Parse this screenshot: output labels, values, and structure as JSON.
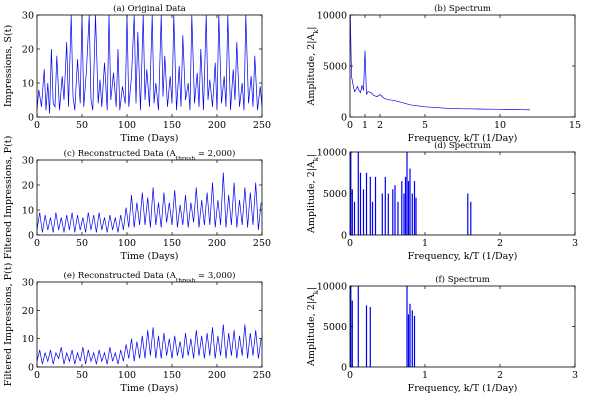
{
  "figure": {
    "line_color": "#0000ee",
    "background": "#ffffff",
    "layout": "3x2"
  },
  "chart_data": [
    {
      "id": "panel-a",
      "type": "line",
      "title": "(a) Original Data",
      "xlabel": "Time (Days)",
      "ylabel": "Impressions, S(t)",
      "xlim": [
        0,
        250
      ],
      "ylim": [
        0,
        30
      ],
      "xticks": [
        "0",
        "50",
        "100",
        "150",
        "200",
        "250"
      ],
      "yticks": [
        "0",
        "10",
        "20",
        "30"
      ],
      "grid": false,
      "series": [
        {
          "x": [
            0,
            2,
            5,
            8,
            10,
            12,
            14,
            16,
            18,
            20,
            22,
            25,
            28,
            30,
            33,
            35,
            38,
            40,
            42,
            45,
            48,
            50,
            52,
            55,
            58,
            60,
            62,
            65,
            68,
            70,
            72,
            75,
            78,
            80,
            82,
            85,
            88,
            90,
            92,
            95,
            98,
            100,
            102,
            105,
            108,
            110,
            112,
            115,
            118,
            120,
            122,
            125,
            128,
            130,
            132,
            135,
            138,
            140,
            142,
            145,
            148,
            150,
            152,
            155,
            158,
            160,
            162,
            165,
            168,
            170,
            172,
            175,
            178,
            180,
            182,
            185,
            188,
            190,
            192,
            195,
            198,
            200,
            202,
            205,
            208,
            210,
            212,
            215,
            218,
            220,
            222,
            225,
            228,
            230,
            232,
            235,
            238,
            240,
            242,
            245,
            248,
            250
          ],
          "y": [
            2,
            8,
            3,
            14,
            2,
            10,
            1,
            20,
            4,
            3,
            18,
            2,
            12,
            5,
            22,
            3,
            30,
            6,
            2,
            17,
            4,
            30,
            3,
            14,
            30,
            5,
            2,
            30,
            4,
            11,
            3,
            16,
            2,
            30,
            5,
            13,
            3,
            20,
            2,
            9,
            4,
            30,
            3,
            12,
            30,
            4,
            25,
            2,
            30,
            5,
            14,
            3,
            30,
            4,
            10,
            2,
            30,
            6,
            18,
            3,
            12,
            4,
            30,
            2,
            15,
            3,
            24,
            5,
            10,
            2,
            30,
            4,
            13,
            3,
            20,
            2,
            30,
            5,
            11,
            3,
            16,
            2,
            30,
            4,
            12,
            3,
            30,
            2,
            14,
            5,
            22,
            3,
            10,
            2,
            30,
            4,
            12,
            3,
            18,
            2,
            9,
            3
          ]
        }
      ]
    },
    {
      "id": "panel-b",
      "type": "line",
      "title": "(b) Spectrum",
      "xlabel": "Frequency, k/T (1/Day)",
      "ylabel": "Amplitude, 2|A_k|",
      "xlim": [
        0,
        15
      ],
      "ylim": [
        0,
        10000
      ],
      "xticks": [
        "0",
        "1",
        "2",
        "5",
        "10",
        "15"
      ],
      "yticks": [
        "0",
        "5000",
        "10000"
      ],
      "grid": false,
      "series": [
        {
          "x": [
            0.02,
            0.1,
            0.2,
            0.3,
            0.4,
            0.5,
            0.6,
            0.7,
            0.8,
            0.9,
            1.0,
            1.1,
            1.2,
            1.4,
            1.6,
            1.8,
            2.0,
            2.3,
            2.6,
            3.0,
            3.5,
            4.0,
            4.5,
            5.0,
            5.5,
            6.0,
            6.5,
            7.0,
            7.5,
            8.0,
            8.5,
            9.0,
            9.5,
            10.0,
            10.5,
            11.0,
            11.5,
            12.0
          ],
          "y": [
            10000,
            4000,
            3200,
            2500,
            2700,
            3000,
            2600,
            2400,
            3100,
            2600,
            6500,
            2200,
            2500,
            2400,
            2100,
            2000,
            2200,
            1800,
            1700,
            1600,
            1400,
            1200,
            1100,
            1000,
            950,
            900,
            850,
            850,
            800,
            800,
            780,
            770,
            760,
            750,
            740,
            730,
            720,
            700
          ]
        }
      ]
    },
    {
      "id": "panel-c",
      "type": "line",
      "title": "(c) Reconstructed Data (A_thresh = 2,000)",
      "xlabel": "Time (Days)",
      "ylabel": "Filtered Impressions, P(t)",
      "xlim": [
        0,
        250
      ],
      "ylim": [
        0,
        30
      ],
      "xticks": [
        "0",
        "50",
        "100",
        "150",
        "200",
        "250"
      ],
      "yticks": [
        "0",
        "10",
        "20",
        "30"
      ],
      "grid": false,
      "series": [
        {
          "x": [
            0,
            3,
            6,
            9,
            12,
            15,
            18,
            21,
            24,
            27,
            30,
            33,
            36,
            39,
            42,
            45,
            48,
            51,
            54,
            57,
            60,
            63,
            66,
            69,
            72,
            75,
            78,
            81,
            84,
            87,
            90,
            93,
            96,
            99,
            102,
            105,
            108,
            111,
            114,
            117,
            120,
            123,
            126,
            129,
            132,
            135,
            138,
            141,
            144,
            147,
            150,
            153,
            156,
            159,
            162,
            165,
            168,
            171,
            174,
            177,
            180,
            183,
            186,
            189,
            192,
            195,
            198,
            201,
            204,
            207,
            210,
            213,
            216,
            219,
            222,
            225,
            228,
            231,
            234,
            237,
            240,
            243,
            246,
            249
          ],
          "y": [
            2,
            9,
            1,
            8,
            2,
            7,
            1,
            9,
            2,
            7,
            1,
            8,
            2,
            9,
            1,
            8,
            2,
            7,
            1,
            9,
            2,
            8,
            1,
            9,
            2,
            7,
            1,
            8,
            2,
            7,
            1,
            8,
            2,
            11,
            3,
            16,
            3,
            13,
            4,
            17,
            4,
            15,
            3,
            19,
            4,
            13,
            3,
            17,
            5,
            13,
            4,
            18,
            3,
            12,
            4,
            16,
            3,
            13,
            5,
            19,
            3,
            14,
            4,
            17,
            4,
            21,
            3,
            14,
            4,
            25,
            3,
            16,
            4,
            21,
            3,
            14,
            4,
            19,
            3,
            17,
            4,
            21,
            2,
            13
          ]
        }
      ]
    },
    {
      "id": "panel-d",
      "type": "bar",
      "title": "(d) Spectrum",
      "xlabel": "Frequency, k/T (1/Day)",
      "ylabel": "Amplitude, 2|A_k|",
      "xlim": [
        0,
        3
      ],
      "ylim": [
        0,
        10000
      ],
      "xticks": [
        "0",
        "1",
        "2",
        "3"
      ],
      "yticks": [
        "0",
        "5000",
        "10000"
      ],
      "grid": false,
      "series": [
        {
          "x": [
            0.01,
            0.03,
            0.06,
            0.11,
            0.14,
            0.18,
            0.22,
            0.27,
            0.3,
            0.34,
            0.43,
            0.47,
            0.51,
            0.57,
            0.6,
            0.64,
            0.69,
            0.72,
            0.74,
            0.76,
            0.78,
            0.8,
            0.83,
            0.86,
            0.88,
            1.57,
            1.61
          ],
          "y": [
            10000,
            5500,
            4000,
            10000,
            7500,
            5500,
            7500,
            7000,
            4000,
            7000,
            5000,
            7000,
            5000,
            5500,
            6000,
            4000,
            6500,
            5000,
            7000,
            10000,
            6500,
            8000,
            5000,
            6500,
            4500,
            5000,
            4000
          ]
        }
      ]
    },
    {
      "id": "panel-e",
      "type": "line",
      "title": "(e) Reconstructed Data (A_thresh = 3,000)",
      "xlabel": "Time (Days)",
      "ylabel": "Filtered Impressions, P(t)",
      "xlim": [
        0,
        250
      ],
      "ylim": [
        0,
        30
      ],
      "xticks": [
        "0",
        "50",
        "100",
        "150",
        "200",
        "250"
      ],
      "yticks": [
        "0",
        "10",
        "20",
        "30"
      ],
      "grid": false,
      "series": [
        {
          "x": [
            0,
            3,
            6,
            9,
            12,
            15,
            18,
            21,
            24,
            27,
            30,
            33,
            36,
            39,
            42,
            45,
            48,
            51,
            54,
            57,
            60,
            63,
            66,
            69,
            72,
            75,
            78,
            81,
            84,
            87,
            90,
            93,
            96,
            99,
            102,
            105,
            108,
            111,
            114,
            117,
            120,
            123,
            126,
            129,
            132,
            135,
            138,
            141,
            144,
            147,
            150,
            153,
            156,
            159,
            162,
            165,
            168,
            171,
            174,
            177,
            180,
            183,
            186,
            189,
            192,
            195,
            198,
            201,
            204,
            207,
            210,
            213,
            216,
            219,
            222,
            225,
            228,
            231,
            234,
            237,
            240,
            243,
            246,
            249
          ],
          "y": [
            2,
            6,
            1,
            5,
            2,
            6,
            1,
            5,
            3,
            7,
            1,
            5,
            2,
            6,
            1,
            5,
            2,
            7,
            1,
            6,
            2,
            5,
            1,
            6,
            2,
            5,
            1,
            7,
            2,
            5,
            1,
            6,
            2,
            8,
            3,
            10,
            2,
            9,
            3,
            11,
            3,
            13,
            4,
            14,
            3,
            11,
            3,
            12,
            4,
            10,
            3,
            11,
            4,
            9,
            3,
            12,
            4,
            10,
            3,
            13,
            4,
            11,
            3,
            12,
            4,
            14,
            3,
            11,
            4,
            15,
            3,
            12,
            4,
            13,
            3,
            11,
            4,
            15,
            3,
            12,
            4,
            13,
            3,
            10
          ]
        }
      ]
    },
    {
      "id": "panel-f",
      "type": "bar",
      "title": "(f) Spectrum",
      "xlabel": "Frequency, k/T (1/Day)",
      "ylabel": "Amplitude, 2|A_k|",
      "xlim": [
        0,
        3
      ],
      "ylim": [
        0,
        10000
      ],
      "xticks": [
        "0",
        "1",
        "2",
        "3"
      ],
      "yticks": [
        "0",
        "5000",
        "10000"
      ],
      "grid": false,
      "series": [
        {
          "x": [
            0.01,
            0.03,
            0.11,
            0.22,
            0.27,
            0.76,
            0.78,
            0.8,
            0.83,
            0.86
          ],
          "y": [
            10000,
            8200,
            10000,
            7600,
            7400,
            10000,
            6500,
            7800,
            7000,
            6300
          ]
        }
      ]
    }
  ]
}
